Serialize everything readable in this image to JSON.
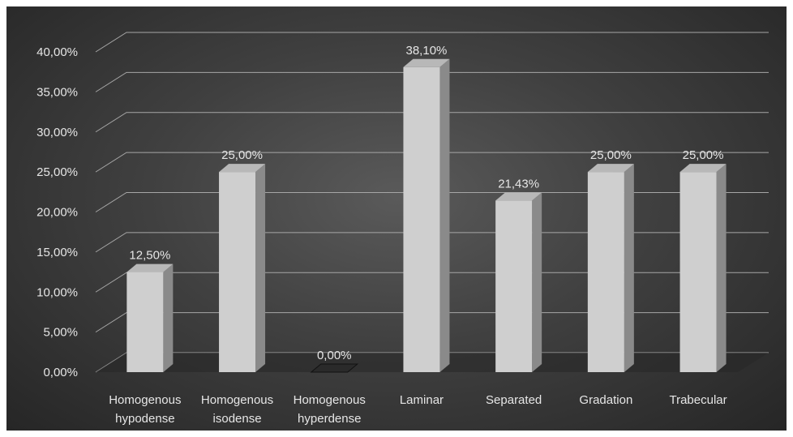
{
  "chart_data": {
    "type": "bar",
    "style": "3d-column",
    "categories": [
      [
        "Homogenous",
        "hypodense"
      ],
      [
        "Homogenous",
        "isodense"
      ],
      [
        "Homogenous",
        "hyperdense"
      ],
      [
        "Laminar"
      ],
      [
        "Separated"
      ],
      [
        "Gradation"
      ],
      [
        "Trabecular"
      ]
    ],
    "values": [
      12.5,
      25.0,
      0.0,
      38.1,
      21.43,
      25.0,
      25.0
    ],
    "data_labels": [
      "12,50%",
      "25,00%",
      "0,00%",
      "38,10%",
      "21,43%",
      "25,00%",
      "25,00%"
    ],
    "yticks": [
      0,
      5,
      10,
      15,
      20,
      25,
      30,
      35,
      40
    ],
    "ytick_labels": [
      "0,00%",
      "5,00%",
      "10,00%",
      "15,00%",
      "20,00%",
      "25,00%",
      "30,00%",
      "35,00%",
      "40,00%"
    ],
    "ylim": [
      0,
      40
    ],
    "title": "",
    "xlabel": "",
    "ylabel": "",
    "grid": true,
    "legend": "none",
    "colors": {
      "bar_front": "#cfcfcf",
      "bar_side": "#8a8a8a",
      "bar_top": "#b8b8b8",
      "floor": "#262626",
      "gridline": "#a6a6a6",
      "text": "#e6e6e6"
    }
  }
}
